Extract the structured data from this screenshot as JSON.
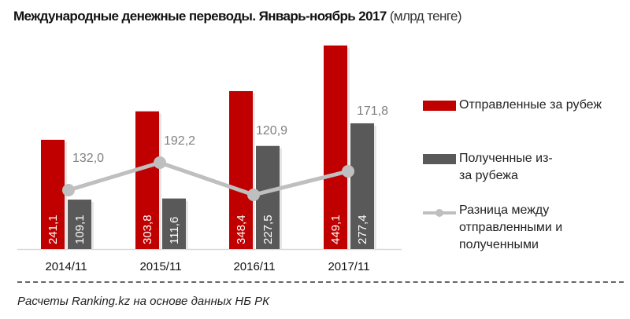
{
  "title": {
    "main": "Международные денежные переводы. Январь-ноябрь 2017",
    "unit": "(млрд тенге)"
  },
  "legend": [
    {
      "label": "Отправленные за рубеж",
      "color": "#c00000",
      "kind": "bar"
    },
    {
      "label": "Полученные из-за рубежа",
      "color": "#595959",
      "kind": "bar"
    },
    {
      "label": "Разница между отправленными и полученными",
      "color": "#bfbfbf",
      "kind": "line"
    }
  ],
  "footer": "Расчеты Ranking.kz на основе данных НБ РК",
  "chart_data": {
    "type": "bar",
    "title": "Международные денежные переводы. Январь-ноябрь 2017 (млрд тенге)",
    "xlabel": "",
    "ylabel": "",
    "categories": [
      "2014/11",
      "2015/11",
      "2016/11",
      "2017/11"
    ],
    "series": [
      {
        "name": "Отправленные за рубеж",
        "type": "bar",
        "color": "#c00000",
        "values": [
          241.1,
          303.8,
          348.4,
          449.1
        ],
        "labels": [
          "241,1",
          "303,8",
          "348,4",
          "449,1"
        ]
      },
      {
        "name": "Полученные из-за рубежа",
        "type": "bar",
        "color": "#595959",
        "values": [
          109.1,
          111.6,
          227.5,
          277.4
        ],
        "labels": [
          "109,1",
          "111,6",
          "227,5",
          "277,4"
        ]
      },
      {
        "name": "Разница между отправленными и полученными",
        "type": "line",
        "color": "#bfbfbf",
        "values": [
          132.0,
          192.2,
          120.9,
          171.8
        ],
        "labels": [
          "132,0",
          "192,2",
          "120,9",
          "171,8"
        ]
      }
    ],
    "grid": false,
    "legend_position": "right"
  }
}
